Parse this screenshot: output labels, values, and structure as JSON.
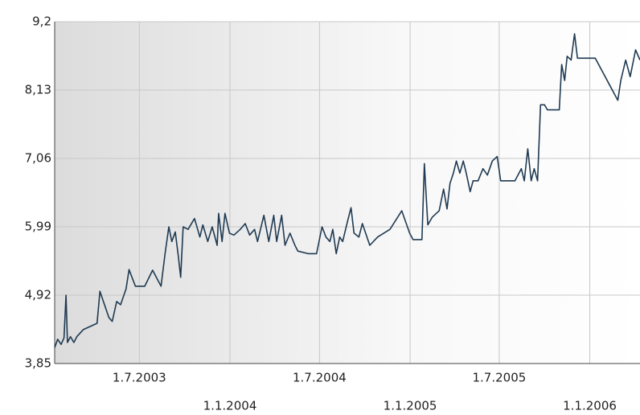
{
  "chart_data": {
    "type": "line",
    "x": [
      "2003-01-10",
      "2003-01-16",
      "2003-01-23",
      "2003-01-29",
      "2003-02-02",
      "2003-02-05",
      "2003-02-11",
      "2003-02-18",
      "2003-02-24",
      "2003-03-09",
      "2003-04-06",
      "2003-04-12",
      "2003-04-30",
      "2003-05-07",
      "2003-05-16",
      "2003-05-24",
      "2003-06-04",
      "2003-06-10",
      "2003-06-23",
      "2003-07-12",
      "2003-07-28",
      "2003-08-14",
      "2003-08-22",
      "2003-08-30",
      "2003-09-05",
      "2003-09-12",
      "2003-09-18",
      "2003-09-23",
      "2003-09-28",
      "2003-10-08",
      "2003-10-21",
      "2003-11-01",
      "2003-11-07",
      "2003-11-17",
      "2003-11-26",
      "2003-12-06",
      "2003-12-09",
      "2003-12-16",
      "2003-12-22",
      "2003-12-31",
      "2004-01-09",
      "2004-01-22",
      "2004-02-01",
      "2004-02-10",
      "2004-02-20",
      "2004-02-26",
      "2004-03-10",
      "2004-03-20",
      "2004-03-30",
      "2004-04-05",
      "2004-04-15",
      "2004-04-22",
      "2004-05-02",
      "2004-05-12",
      "2004-05-18",
      "2004-06-08",
      "2004-06-25",
      "2004-07-06",
      "2004-07-14",
      "2004-07-22",
      "2004-07-28",
      "2004-08-04",
      "2004-08-11",
      "2004-08-17",
      "2004-08-27",
      "2004-09-03",
      "2004-09-09",
      "2004-09-19",
      "2004-09-26",
      "2004-10-11",
      "2004-10-27",
      "2004-11-21",
      "2004-12-15",
      "2004-12-31",
      "2005-01-07",
      "2005-01-25",
      "2005-01-30",
      "2005-02-06",
      "2005-02-15",
      "2005-03-01",
      "2005-03-10",
      "2005-03-17",
      "2005-03-23",
      "2005-03-30",
      "2005-04-05",
      "2005-04-12",
      "2005-04-19",
      "2005-04-25",
      "2005-05-03",
      "2005-05-09",
      "2005-05-19",
      "2005-05-29",
      "2005-06-07",
      "2005-06-17",
      "2005-06-27",
      "2005-07-04",
      "2005-08-02",
      "2005-08-15",
      "2005-08-21",
      "2005-08-28",
      "2005-09-04",
      "2005-09-10",
      "2005-09-17",
      "2005-09-23",
      "2005-10-01",
      "2005-10-07",
      "2005-10-31",
      "2005-11-05",
      "2005-11-11",
      "2005-11-16",
      "2005-11-24",
      "2005-12-01",
      "2005-12-07",
      "2006-01-12",
      "2006-02-27",
      "2006-03-05",
      "2006-03-15",
      "2006-03-24",
      "2006-04-04",
      "2006-04-13"
    ],
    "series": [
      {
        "color": "#1f3a52",
        "values": [
          4.1,
          4.23,
          4.15,
          4.25,
          4.92,
          4.18,
          4.27,
          4.18,
          4.27,
          4.38,
          4.48,
          4.98,
          4.57,
          4.51,
          4.82,
          4.77,
          5.02,
          5.32,
          5.06,
          5.06,
          5.31,
          5.06,
          5.56,
          5.99,
          5.76,
          5.91,
          5.54,
          5.2,
          5.99,
          5.95,
          6.12,
          5.83,
          6.02,
          5.76,
          5.99,
          5.7,
          6.2,
          5.76,
          6.2,
          5.89,
          5.86,
          5.95,
          6.04,
          5.86,
          5.95,
          5.76,
          6.17,
          5.76,
          6.17,
          5.76,
          6.17,
          5.7,
          5.89,
          5.7,
          5.61,
          5.57,
          5.57,
          5.99,
          5.83,
          5.76,
          5.95,
          5.57,
          5.83,
          5.76,
          6.08,
          6.29,
          5.89,
          5.83,
          6.04,
          5.7,
          5.83,
          5.95,
          6.24,
          5.89,
          5.79,
          5.79,
          6.98,
          6.02,
          6.14,
          6.24,
          6.58,
          6.27,
          6.67,
          6.83,
          7.02,
          6.83,
          7.02,
          6.83,
          6.54,
          6.71,
          6.71,
          6.9,
          6.8,
          7.02,
          7.09,
          6.71,
          6.71,
          6.9,
          6.71,
          7.21,
          6.71,
          6.9,
          6.71,
          7.9,
          7.9,
          7.82,
          7.82,
          8.53,
          8.28,
          8.66,
          8.6,
          9.01,
          8.63,
          8.63,
          7.97,
          8.28,
          8.6,
          8.34,
          8.76,
          8.6
        ]
      }
    ],
    "xlim": [
      "2003-01-10",
      "2006-04-13"
    ],
    "xticks": [
      {
        "value": "2003-07-01",
        "label": "1.7.2003"
      },
      {
        "value": "2004-01-01",
        "label": "1.1.2004"
      },
      {
        "value": "2004-07-01",
        "label": "1.7.2004"
      },
      {
        "value": "2005-01-01",
        "label": "1.1.2005"
      },
      {
        "value": "2005-07-01",
        "label": "1.7.2005"
      },
      {
        "value": "2006-01-01",
        "label": "1.1.2006"
      }
    ],
    "ylim": [
      3.85,
      9.2
    ],
    "yticks": [
      {
        "value": 3.85,
        "label": "3,85"
      },
      {
        "value": 4.92,
        "label": "4,92"
      },
      {
        "value": 5.99,
        "label": "5,99"
      },
      {
        "value": 7.06,
        "label": "7,06"
      },
      {
        "value": 8.13,
        "label": "8,13"
      },
      {
        "value": 9.2,
        "label": "9,2"
      }
    ],
    "grid": true
  }
}
